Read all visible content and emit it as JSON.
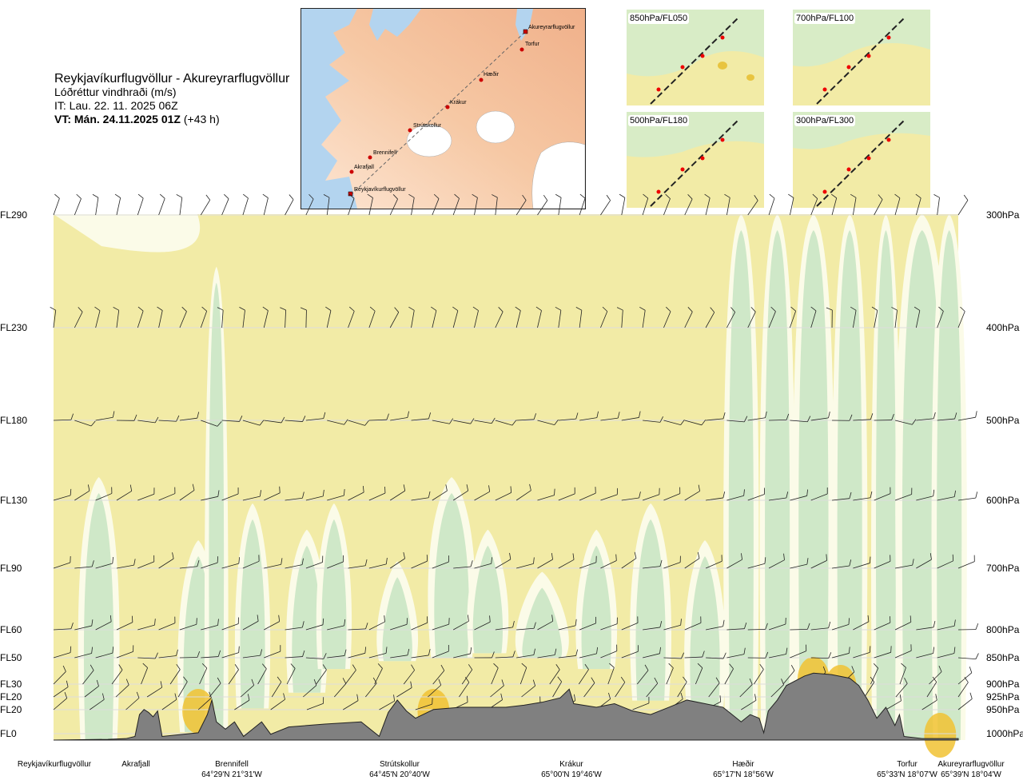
{
  "header": {
    "route": "Reykjavíkurflugvöllur - Akureyrarflugvöllur",
    "parameter": "Lóðréttur vindhraði (m/s)",
    "issue_time": "IT: Lau. 22. 11. 2025 06Z",
    "valid_time": "VT: Mán. 24.11.2025 01Z",
    "lead": "(+43 h)"
  },
  "map": {
    "waypoints": [
      "Akureyrarflugvöllur",
      "Torfur",
      "Hæðir",
      "Krákur",
      "Strútskollur",
      "Brennifell",
      "Akrafjall",
      "Reykjavíkurflugvöllur"
    ]
  },
  "mini_maps": [
    {
      "label": "850hPa/FL050"
    },
    {
      "label": "700hPa/FL100"
    },
    {
      "label": "500hPa/FL180"
    },
    {
      "label": "300hPa/FL300"
    }
  ],
  "colors": {
    "ground": "#808080",
    "pale_yellow": "#f2eba6",
    "light_green": "#cfe8c8",
    "white_band": "#fbfbe8",
    "amber": "#f1c232",
    "orange": "#e8a60c",
    "grid": "#dddddd"
  },
  "chart_data": {
    "type": "cross-section",
    "title": "Lóðréttur vindhraði (m/s)",
    "left_axis_labels": [
      "FL290",
      "FL230",
      "FL180",
      "FL130",
      "FL90",
      "FL60",
      "FL50",
      "FL30",
      "FL20",
      "FL20",
      "FL0"
    ],
    "right_axis_labels": [
      "300hPa",
      "400hPa",
      "500hPa",
      "600hPa",
      "700hPa",
      "800hPa",
      "850hPa",
      "900hPa",
      "925hPa",
      "950hPa",
      "1000hPa"
    ],
    "pressure_levels_hpa": [
      300,
      400,
      500,
      600,
      700,
      800,
      850,
      900,
      925,
      950,
      1000
    ],
    "x_locations": [
      {
        "name": "Reykjavíkurflugvöllur",
        "coord": ""
      },
      {
        "name": "Akrafjall",
        "coord": ""
      },
      {
        "name": "Brennifell",
        "coord": "64°29'N 21°31'W"
      },
      {
        "name": "Strútskollur",
        "coord": "64°45'N 20°40'W"
      },
      {
        "name": "Krákur",
        "coord": "65°00'N 19°46'W"
      },
      {
        "name": "Hæðir",
        "coord": "65°17'N 18°56'W"
      },
      {
        "name": "Torfur",
        "coord": "65°33'N 18°07'W"
      },
      {
        "name": "Akureyrarflugvöllur",
        "coord": "65°39'N 18°04'W"
      }
    ],
    "terrain_profile_fraction": [
      [
        0,
        0
      ],
      [
        0.06,
        0.01
      ],
      [
        0.08,
        0.02
      ],
      [
        0.09,
        0.05
      ],
      [
        0.095,
        0.35
      ],
      [
        0.1,
        0.42
      ],
      [
        0.105,
        0.38
      ],
      [
        0.11,
        0.32
      ],
      [
        0.115,
        0.4
      ],
      [
        0.12,
        0.05
      ],
      [
        0.16,
        0.1
      ],
      [
        0.17,
        0.35
      ],
      [
        0.175,
        0.55
      ],
      [
        0.18,
        0.25
      ],
      [
        0.19,
        0.15
      ],
      [
        0.2,
        0.25
      ],
      [
        0.21,
        0.05
      ],
      [
        0.22,
        0.15
      ],
      [
        0.23,
        0.25
      ],
      [
        0.24,
        0.08
      ],
      [
        0.26,
        0.18
      ],
      [
        0.3,
        0.22
      ],
      [
        0.34,
        0.25
      ],
      [
        0.36,
        0.05
      ],
      [
        0.37,
        0.38
      ],
      [
        0.38,
        0.55
      ],
      [
        0.39,
        0.4
      ],
      [
        0.4,
        0.3
      ],
      [
        0.42,
        0.42
      ],
      [
        0.45,
        0.45
      ],
      [
        0.5,
        0.45
      ],
      [
        0.52,
        0.48
      ],
      [
        0.54,
        0.52
      ],
      [
        0.56,
        0.58
      ],
      [
        0.57,
        0.7
      ],
      [
        0.575,
        0.5
      ],
      [
        0.6,
        0.45
      ],
      [
        0.62,
        0.5
      ],
      [
        0.63,
        0.45
      ],
      [
        0.64,
        0.4
      ],
      [
        0.66,
        0.35
      ],
      [
        0.68,
        0.45
      ],
      [
        0.7,
        0.55
      ],
      [
        0.72,
        0.5
      ],
      [
        0.74,
        0.45
      ],
      [
        0.75,
        0.35
      ],
      [
        0.76,
        0.25
      ],
      [
        0.77,
        0.35
      ],
      [
        0.78,
        0.3
      ],
      [
        0.785,
        0.1
      ],
      [
        0.79,
        0.4
      ],
      [
        0.8,
        0.55
      ],
      [
        0.81,
        0.75
      ],
      [
        0.83,
        0.88
      ],
      [
        0.84,
        0.92
      ],
      [
        0.86,
        0.9
      ],
      [
        0.88,
        0.85
      ],
      [
        0.89,
        0.75
      ],
      [
        0.9,
        0.55
      ],
      [
        0.91,
        0.3
      ],
      [
        0.92,
        0.45
      ],
      [
        0.93,
        0.2
      ],
      [
        0.935,
        0.35
      ],
      [
        0.94,
        0.05
      ],
      [
        0.96,
        0.02
      ],
      [
        1.0,
        0.02
      ]
    ],
    "legend": []
  }
}
